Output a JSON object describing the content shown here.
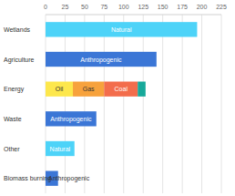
{
  "chart_data": {
    "type": "bar",
    "orientation": "horizontal",
    "stacked": true,
    "grid": true,
    "categories": [
      "Wetlands",
      "Agriculture",
      "Energy",
      "Waste",
      "Other",
      "Biomass burning"
    ],
    "series": [
      {
        "name": "Natural",
        "color": "#4dd3f8",
        "values": [
          194,
          null,
          null,
          null,
          37,
          null
        ]
      },
      {
        "name": "Anthropogenic",
        "color": "#3b76d6",
        "values": [
          null,
          142,
          null,
          65,
          null,
          16
        ]
      },
      {
        "name": "Oil",
        "color": "#fde74c",
        "values": [
          null,
          null,
          35,
          null,
          null,
          null
        ]
      },
      {
        "name": "Gas",
        "color": "#f7a23c",
        "values": [
          null,
          null,
          40,
          null,
          null,
          null
        ]
      },
      {
        "name": "Coal",
        "color": "#f36d4c",
        "values": [
          null,
          null,
          43,
          null,
          null,
          null
        ]
      },
      {
        "color": "#17a99a",
        "values": [
          null,
          null,
          10,
          null,
          null,
          null
        ]
      }
    ],
    "xlim": [
      0,
      225
    ],
    "xticks": [
      0,
      25,
      50,
      75,
      100,
      125,
      150,
      175,
      200,
      225
    ]
  }
}
